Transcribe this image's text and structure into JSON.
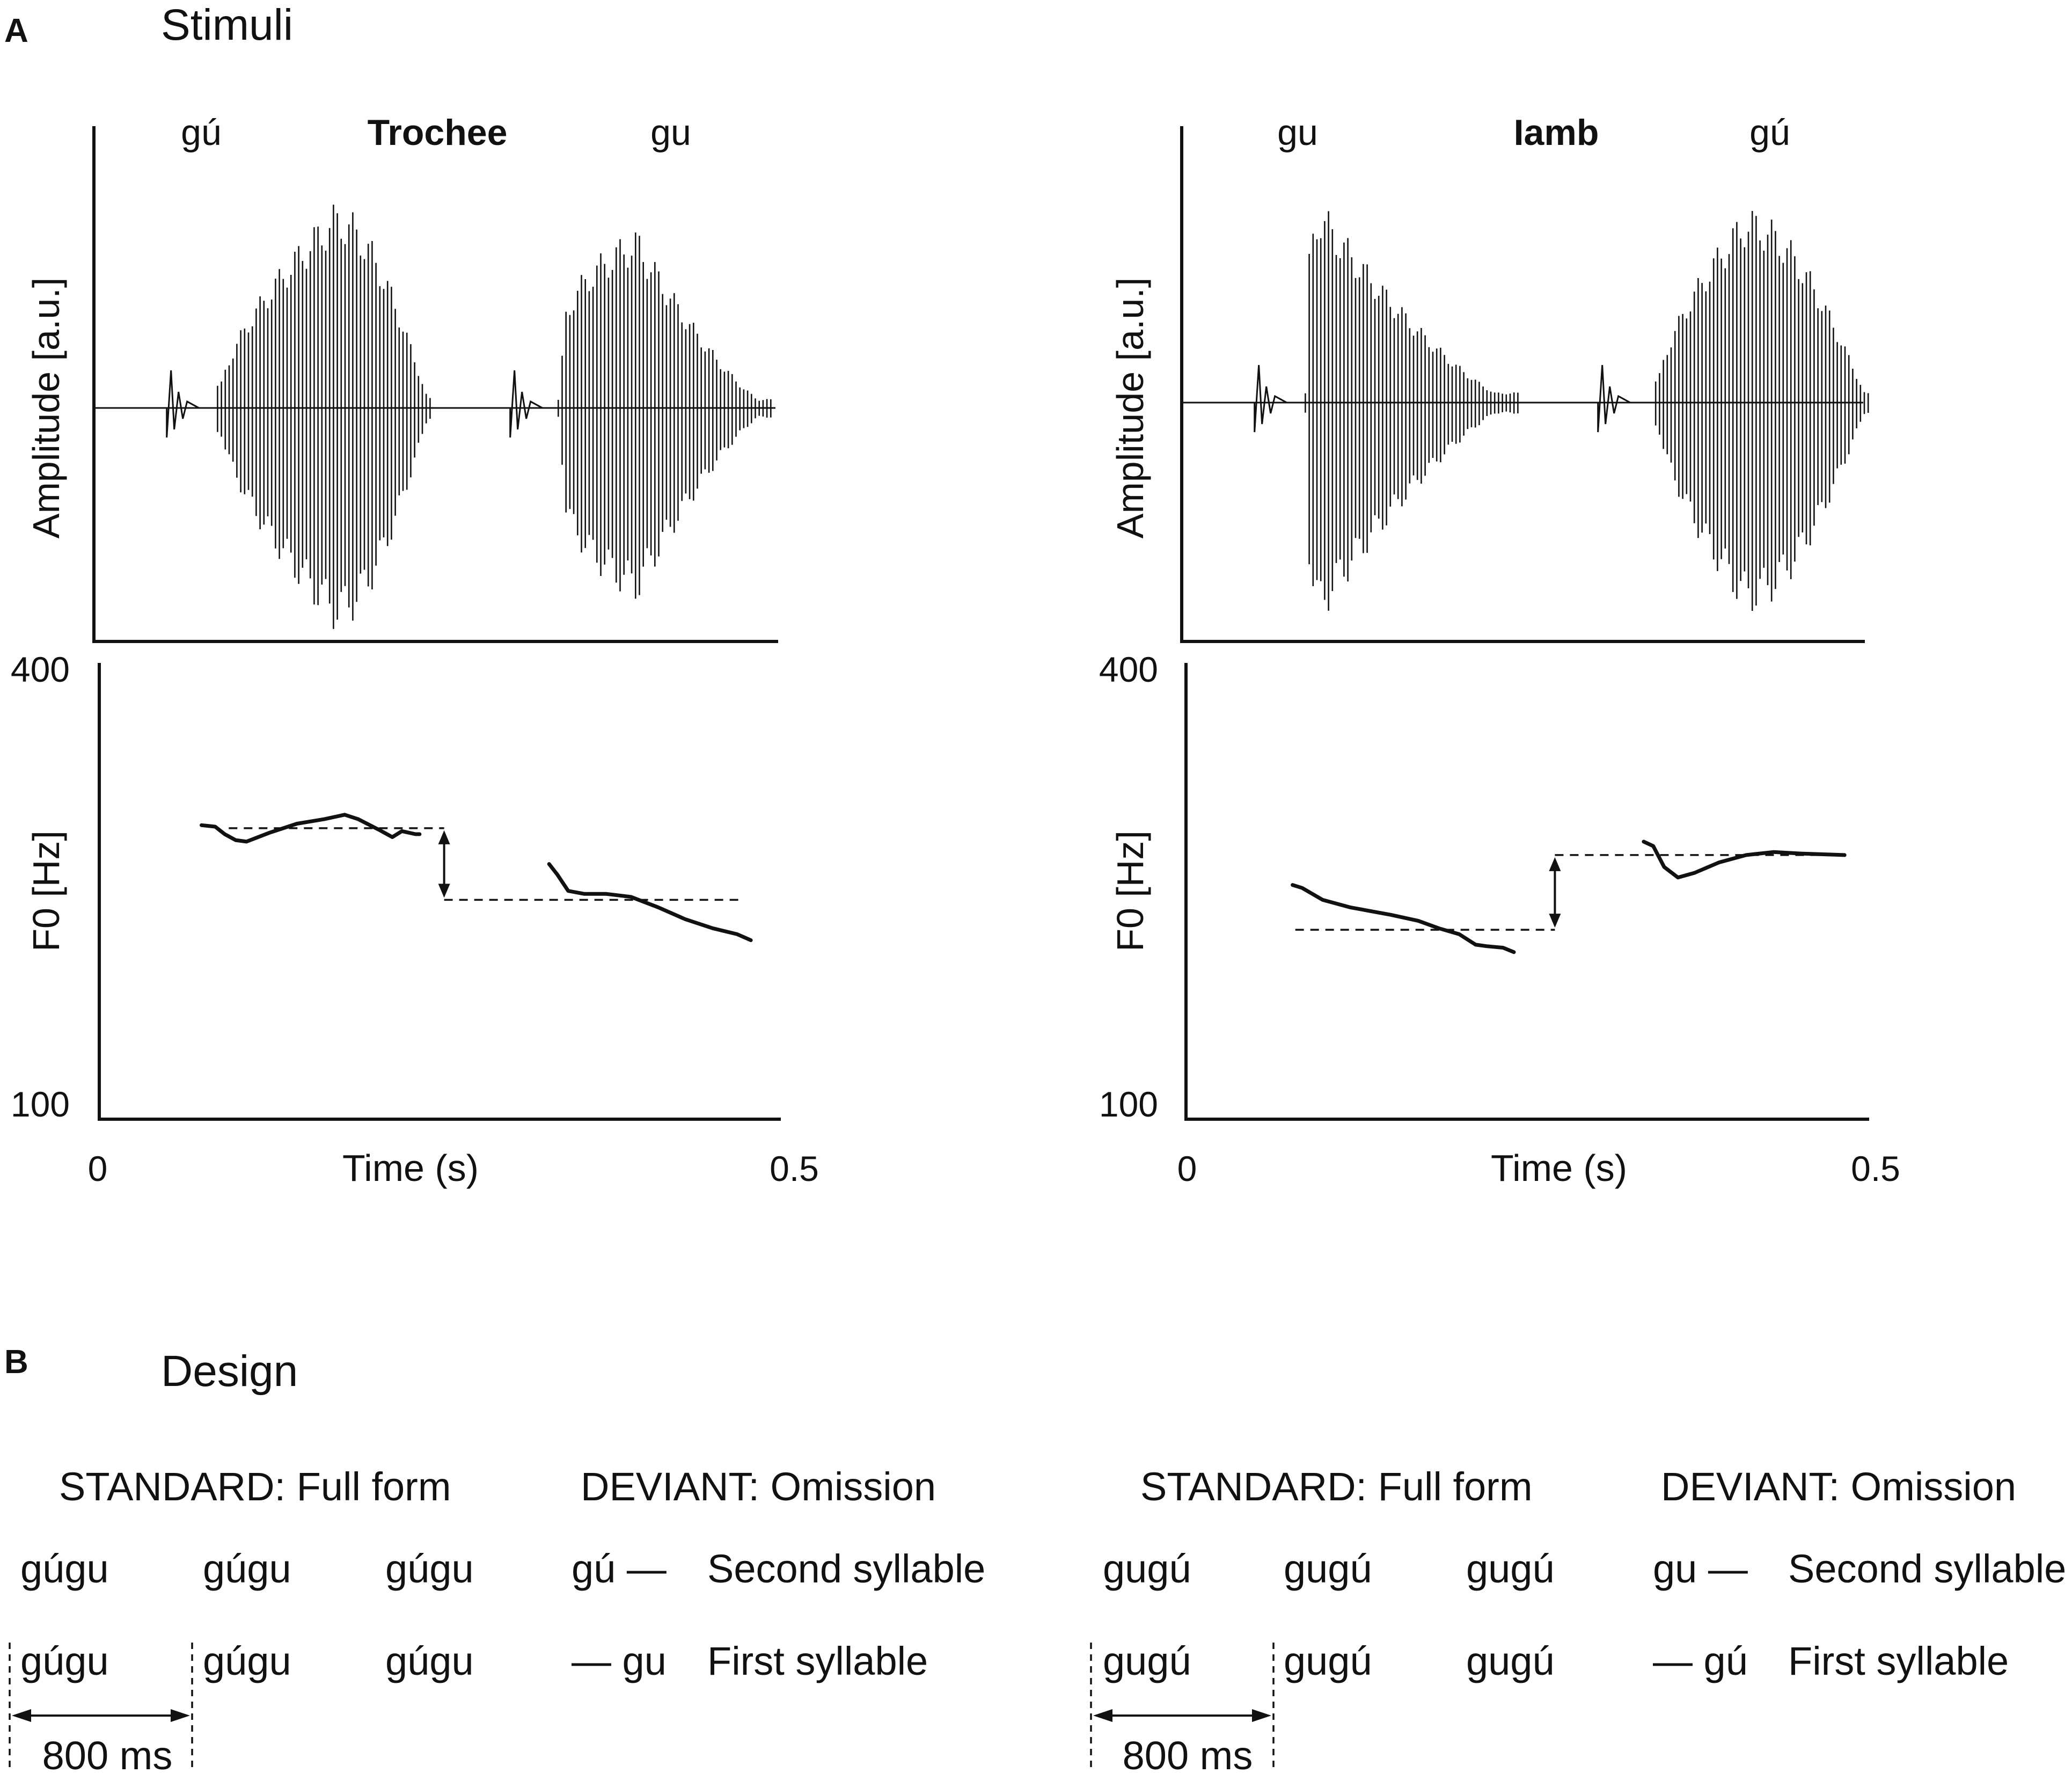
{
  "figure": {
    "panel_a": {
      "letter": "A",
      "title": "Stimuli"
    },
    "panel_b": {
      "letter": "B",
      "title": "Design"
    }
  },
  "chart_data": [
    {
      "type": "waveform",
      "name": "trochee-waveform",
      "title": "Trochee",
      "syllables": [
        "gú",
        "gu"
      ],
      "ylabel": "Amplitude [a.u.]",
      "xlim": [
        0,
        0.5
      ],
      "segments": [
        {
          "onset": 0.053,
          "voice_start": 0.09,
          "voice_end": 0.245,
          "peak_time": 0.175,
          "peak_amp": 1.0,
          "stressed": true
        },
        {
          "onset": 0.303,
          "voice_start": 0.338,
          "voice_end": 0.495,
          "peak_time": 0.395,
          "peak_amp": 0.88,
          "stressed": false
        }
      ]
    },
    {
      "type": "line",
      "name": "trochee-f0",
      "xlabel": "Time (s)",
      "ylabel": "F0 [Hz]",
      "xlim": [
        0,
        0.5
      ],
      "ylim": [
        100,
        400
      ],
      "x_ticks": [
        "0",
        "0.5"
      ],
      "y_ticks": [
        "100",
        "400"
      ],
      "series": [
        {
          "name": "gú",
          "x": [
            0.075,
            0.085,
            0.092,
            0.1,
            0.108,
            0.125,
            0.145,
            0.165,
            0.18,
            0.19,
            0.205,
            0.215,
            0.222,
            0.232,
            0.235
          ],
          "y": [
            295,
            294,
            289,
            285,
            284,
            290,
            296,
            299,
            302,
            299,
            292,
            287,
            291,
            289,
            289
          ]
        },
        {
          "name": "gu",
          "x": [
            0.33,
            0.336,
            0.344,
            0.356,
            0.372,
            0.39,
            0.41,
            0.43,
            0.45,
            0.468,
            0.478
          ],
          "y": [
            269,
            262,
            251,
            249,
            249,
            247,
            240,
            232,
            226,
            222,
            218
          ]
        }
      ],
      "reference_lines": [
        {
          "x": [
            0.095,
            0.253
          ],
          "y": 293
        },
        {
          "x": [
            0.253,
            0.47
          ],
          "y": 245
        }
      ],
      "arrow": {
        "x": 0.253,
        "y": [
          293,
          245
        ]
      }
    },
    {
      "type": "waveform",
      "name": "iamb-waveform",
      "title": "Iamb",
      "syllables": [
        "gu",
        "gú"
      ],
      "ylabel": "Amplitude [a.u.]",
      "xlim": [
        0,
        0.5
      ],
      "segments": [
        {
          "onset": 0.053,
          "voice_start": 0.09,
          "voice_end": 0.245,
          "peak_time": 0.1,
          "peak_amp": 1.0,
          "stressed": false
        },
        {
          "onset": 0.303,
          "voice_start": 0.345,
          "voice_end": 0.5,
          "peak_time": 0.41,
          "peak_amp": 0.95,
          "stressed": true
        }
      ]
    },
    {
      "type": "line",
      "name": "iamb-f0",
      "xlabel": "Time (s)",
      "ylabel": "F0 [Hz]",
      "xlim": [
        0,
        0.5
      ],
      "ylim": [
        100,
        400
      ],
      "x_ticks": [
        "0",
        "0.5"
      ],
      "y_ticks": [
        "100",
        "400"
      ],
      "series": [
        {
          "name": "gu",
          "x": [
            0.078,
            0.085,
            0.1,
            0.12,
            0.15,
            0.17,
            0.185,
            0.2,
            0.212,
            0.22,
            0.232,
            0.24
          ],
          "y": [
            255,
            253,
            245,
            240,
            235,
            231,
            226,
            222,
            215,
            214,
            213,
            210
          ]
        },
        {
          "name": "gú",
          "x": [
            0.335,
            0.342,
            0.35,
            0.36,
            0.372,
            0.39,
            0.41,
            0.43,
            0.45,
            0.482
          ],
          "y": [
            284,
            281,
            267,
            260,
            263,
            270,
            275,
            277,
            276,
            275
          ]
        }
      ],
      "reference_lines": [
        {
          "x": [
            0.08,
            0.27
          ],
          "y": 225
        },
        {
          "x": [
            0.27,
            0.483
          ],
          "y": 275
        }
      ],
      "arrow": {
        "x": 0.27,
        "y": [
          225,
          275
        ]
      }
    }
  ],
  "design": {
    "blocks": [
      {
        "standard_header": "STANDARD: Full form",
        "deviant_header": "DEVIANT: Omission",
        "row1": {
          "tokens": [
            "gúgu",
            "gúgu",
            "gúgu"
          ],
          "deviant": "gú —",
          "description": "Second syllable"
        },
        "row2": {
          "tokens": [
            "gúgu",
            "gúgu",
            "gúgu"
          ],
          "deviant": "— gu",
          "description": "First syllable"
        },
        "interval": "800 ms"
      },
      {
        "standard_header": "STANDARD: Full form",
        "deviant_header": "DEVIANT: Omission",
        "row1": {
          "tokens": [
            "gugú",
            "gugú",
            "gugú"
          ],
          "deviant": "gu —",
          "description": "Second syllable"
        },
        "row2": {
          "tokens": [
            "gugú",
            "gugú",
            "gugú"
          ],
          "deviant": "— gú",
          "description": "First syllable"
        },
        "interval": "800 ms"
      }
    ]
  }
}
